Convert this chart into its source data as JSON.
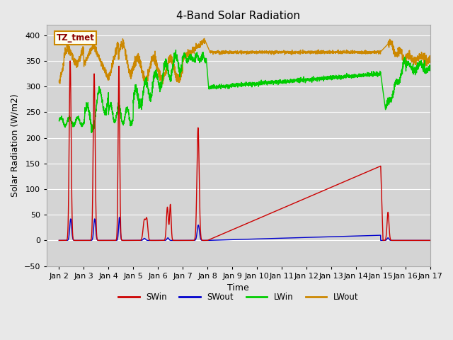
{
  "title": "4-Band Solar Radiation",
  "xlabel": "Time",
  "ylabel": "Solar Radiation (W/m2)",
  "annotation": "TZ_tmet",
  "ylim": [
    -50,
    420
  ],
  "xlim": [
    1.5,
    17
  ],
  "xtick_positions": [
    2,
    3,
    4,
    5,
    6,
    7,
    8,
    9,
    10,
    11,
    12,
    13,
    14,
    15,
    16,
    17
  ],
  "xtick_labels": [
    "Jan 2",
    "Jan 3",
    "Jan 4",
    "Jan 5",
    "Jan 6",
    "Jan 7",
    "Jan 8",
    "Jan 9",
    "Jan 10",
    "Jan 11",
    "Jan 12",
    "Jan 13",
    "Jan 14",
    "Jan 15",
    "Jan 16",
    "Jan 17"
  ],
  "ytick_positions": [
    -50,
    0,
    50,
    100,
    150,
    200,
    250,
    300,
    350,
    400
  ],
  "colors": {
    "SWin": "#cc0000",
    "SWout": "#0000cc",
    "LWin": "#00cc00",
    "LWout": "#cc8800"
  },
  "background_color": "#e8e8e8",
  "plot_bg_color": "#d4d4d4"
}
